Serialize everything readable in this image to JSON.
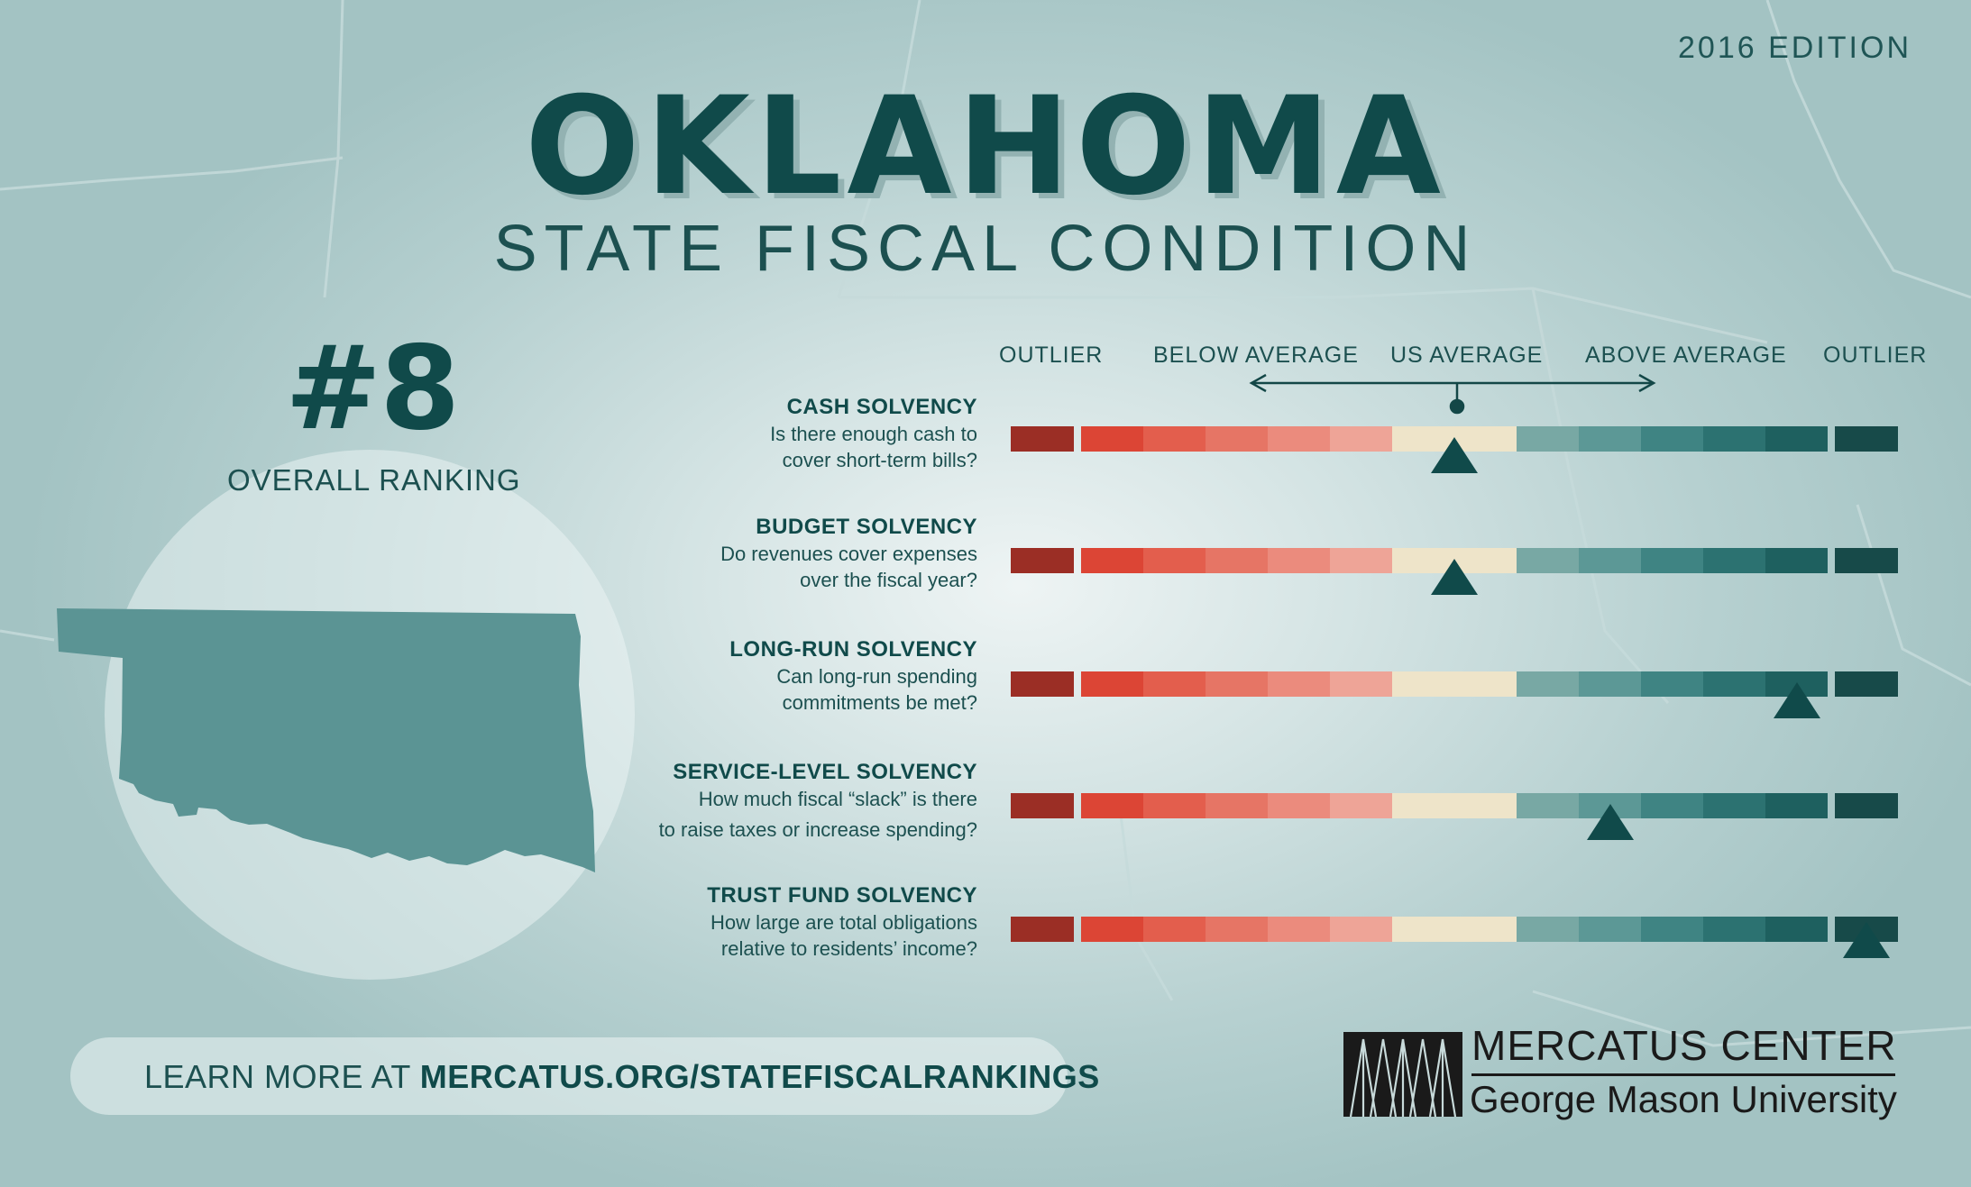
{
  "header": {
    "edition": "2016 EDITION",
    "state_name": "OKLAHOMA",
    "subtitle": "STATE FISCAL CONDITION"
  },
  "ranking": {
    "number": "#8",
    "label": "OVERALL RANKING"
  },
  "scale": {
    "labels": [
      "OUTLIER",
      "BELOW AVERAGE",
      "US AVERAGE",
      "ABOVE AVERAGE",
      "OUTLIER"
    ],
    "segment_colors": [
      "#9b2e25",
      "#dc4535",
      "#e35e4d",
      "#e67565",
      "#eb8b7d",
      "#eea497",
      "#eee4c9",
      "#78a8a4",
      "#5c9896",
      "#3f8483",
      "#2c7271",
      "#1e605f",
      "#174a49"
    ],
    "marker_color": "#104a4a"
  },
  "categories": [
    {
      "title": "CASH SOLVENCY",
      "question_line1": "Is there enough cash to",
      "question_line2": "cover short-term bills?",
      "marker_segment": 6
    },
    {
      "title": "BUDGET SOLVENCY",
      "question_line1": "Do revenues cover expenses",
      "question_line2": "over the fiscal year?",
      "marker_segment": 6
    },
    {
      "title": "LONG-RUN SOLVENCY",
      "question_line1": "Can long-run spending",
      "question_line2": "commitments be met?",
      "marker_segment": 11
    },
    {
      "title": "SERVICE-LEVEL SOLVENCY",
      "question_line1": "How much fiscal “slack” is there",
      "question_line2": "to raise taxes or increase spending?",
      "marker_segment": 8
    },
    {
      "title": "TRUST FUND SOLVENCY",
      "question_line1": "How large are total obligations",
      "question_line2": "relative to residents’ income?",
      "marker_segment": 12
    }
  ],
  "footer": {
    "learn_more_prefix": "LEARN MORE AT",
    "learn_more_url": "MERCATUS.ORG/STATEFISCALRANKINGS"
  },
  "logo": {
    "line1": "MERCATUS CENTER",
    "line2": "George Mason University"
  }
}
